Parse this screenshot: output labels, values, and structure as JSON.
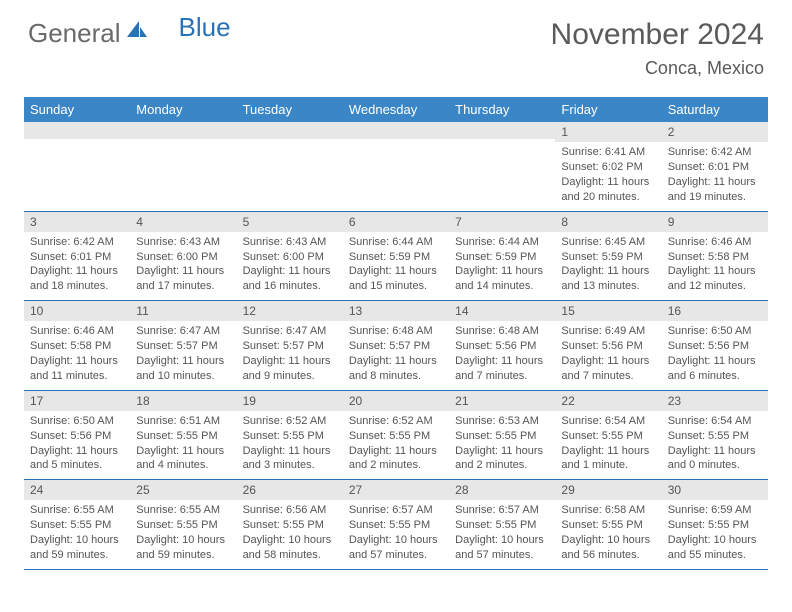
{
  "brand": {
    "word1": "General",
    "word2": "Blue"
  },
  "title": {
    "month": "November 2024",
    "location": "Conca, Mexico"
  },
  "colors": {
    "header_bg": "#3b86c6",
    "week_border": "#2a72b5",
    "daynum_bg": "#e7e7e7",
    "text": "#555555",
    "logo_gray": "#6a6a6a",
    "logo_blue": "#2a72b5"
  },
  "dayNames": [
    "Sunday",
    "Monday",
    "Tuesday",
    "Wednesday",
    "Thursday",
    "Friday",
    "Saturday"
  ],
  "weeks": [
    [
      {
        "n": "",
        "sr": "",
        "ss": "",
        "dl": ""
      },
      {
        "n": "",
        "sr": "",
        "ss": "",
        "dl": ""
      },
      {
        "n": "",
        "sr": "",
        "ss": "",
        "dl": ""
      },
      {
        "n": "",
        "sr": "",
        "ss": "",
        "dl": ""
      },
      {
        "n": "",
        "sr": "",
        "ss": "",
        "dl": ""
      },
      {
        "n": "1",
        "sr": "Sunrise: 6:41 AM",
        "ss": "Sunset: 6:02 PM",
        "dl": "Daylight: 11 hours and 20 minutes."
      },
      {
        "n": "2",
        "sr": "Sunrise: 6:42 AM",
        "ss": "Sunset: 6:01 PM",
        "dl": "Daylight: 11 hours and 19 minutes."
      }
    ],
    [
      {
        "n": "3",
        "sr": "Sunrise: 6:42 AM",
        "ss": "Sunset: 6:01 PM",
        "dl": "Daylight: 11 hours and 18 minutes."
      },
      {
        "n": "4",
        "sr": "Sunrise: 6:43 AM",
        "ss": "Sunset: 6:00 PM",
        "dl": "Daylight: 11 hours and 17 minutes."
      },
      {
        "n": "5",
        "sr": "Sunrise: 6:43 AM",
        "ss": "Sunset: 6:00 PM",
        "dl": "Daylight: 11 hours and 16 minutes."
      },
      {
        "n": "6",
        "sr": "Sunrise: 6:44 AM",
        "ss": "Sunset: 5:59 PM",
        "dl": "Daylight: 11 hours and 15 minutes."
      },
      {
        "n": "7",
        "sr": "Sunrise: 6:44 AM",
        "ss": "Sunset: 5:59 PM",
        "dl": "Daylight: 11 hours and 14 minutes."
      },
      {
        "n": "8",
        "sr": "Sunrise: 6:45 AM",
        "ss": "Sunset: 5:59 PM",
        "dl": "Daylight: 11 hours and 13 minutes."
      },
      {
        "n": "9",
        "sr": "Sunrise: 6:46 AM",
        "ss": "Sunset: 5:58 PM",
        "dl": "Daylight: 11 hours and 12 minutes."
      }
    ],
    [
      {
        "n": "10",
        "sr": "Sunrise: 6:46 AM",
        "ss": "Sunset: 5:58 PM",
        "dl": "Daylight: 11 hours and 11 minutes."
      },
      {
        "n": "11",
        "sr": "Sunrise: 6:47 AM",
        "ss": "Sunset: 5:57 PM",
        "dl": "Daylight: 11 hours and 10 minutes."
      },
      {
        "n": "12",
        "sr": "Sunrise: 6:47 AM",
        "ss": "Sunset: 5:57 PM",
        "dl": "Daylight: 11 hours and 9 minutes."
      },
      {
        "n": "13",
        "sr": "Sunrise: 6:48 AM",
        "ss": "Sunset: 5:57 PM",
        "dl": "Daylight: 11 hours and 8 minutes."
      },
      {
        "n": "14",
        "sr": "Sunrise: 6:48 AM",
        "ss": "Sunset: 5:56 PM",
        "dl": "Daylight: 11 hours and 7 minutes."
      },
      {
        "n": "15",
        "sr": "Sunrise: 6:49 AM",
        "ss": "Sunset: 5:56 PM",
        "dl": "Daylight: 11 hours and 7 minutes."
      },
      {
        "n": "16",
        "sr": "Sunrise: 6:50 AM",
        "ss": "Sunset: 5:56 PM",
        "dl": "Daylight: 11 hours and 6 minutes."
      }
    ],
    [
      {
        "n": "17",
        "sr": "Sunrise: 6:50 AM",
        "ss": "Sunset: 5:56 PM",
        "dl": "Daylight: 11 hours and 5 minutes."
      },
      {
        "n": "18",
        "sr": "Sunrise: 6:51 AM",
        "ss": "Sunset: 5:55 PM",
        "dl": "Daylight: 11 hours and 4 minutes."
      },
      {
        "n": "19",
        "sr": "Sunrise: 6:52 AM",
        "ss": "Sunset: 5:55 PM",
        "dl": "Daylight: 11 hours and 3 minutes."
      },
      {
        "n": "20",
        "sr": "Sunrise: 6:52 AM",
        "ss": "Sunset: 5:55 PM",
        "dl": "Daylight: 11 hours and 2 minutes."
      },
      {
        "n": "21",
        "sr": "Sunrise: 6:53 AM",
        "ss": "Sunset: 5:55 PM",
        "dl": "Daylight: 11 hours and 2 minutes."
      },
      {
        "n": "22",
        "sr": "Sunrise: 6:54 AM",
        "ss": "Sunset: 5:55 PM",
        "dl": "Daylight: 11 hours and 1 minute."
      },
      {
        "n": "23",
        "sr": "Sunrise: 6:54 AM",
        "ss": "Sunset: 5:55 PM",
        "dl": "Daylight: 11 hours and 0 minutes."
      }
    ],
    [
      {
        "n": "24",
        "sr": "Sunrise: 6:55 AM",
        "ss": "Sunset: 5:55 PM",
        "dl": "Daylight: 10 hours and 59 minutes."
      },
      {
        "n": "25",
        "sr": "Sunrise: 6:55 AM",
        "ss": "Sunset: 5:55 PM",
        "dl": "Daylight: 10 hours and 59 minutes."
      },
      {
        "n": "26",
        "sr": "Sunrise: 6:56 AM",
        "ss": "Sunset: 5:55 PM",
        "dl": "Daylight: 10 hours and 58 minutes."
      },
      {
        "n": "27",
        "sr": "Sunrise: 6:57 AM",
        "ss": "Sunset: 5:55 PM",
        "dl": "Daylight: 10 hours and 57 minutes."
      },
      {
        "n": "28",
        "sr": "Sunrise: 6:57 AM",
        "ss": "Sunset: 5:55 PM",
        "dl": "Daylight: 10 hours and 57 minutes."
      },
      {
        "n": "29",
        "sr": "Sunrise: 6:58 AM",
        "ss": "Sunset: 5:55 PM",
        "dl": "Daylight: 10 hours and 56 minutes."
      },
      {
        "n": "30",
        "sr": "Sunrise: 6:59 AM",
        "ss": "Sunset: 5:55 PM",
        "dl": "Daylight: 10 hours and 55 minutes."
      }
    ]
  ]
}
